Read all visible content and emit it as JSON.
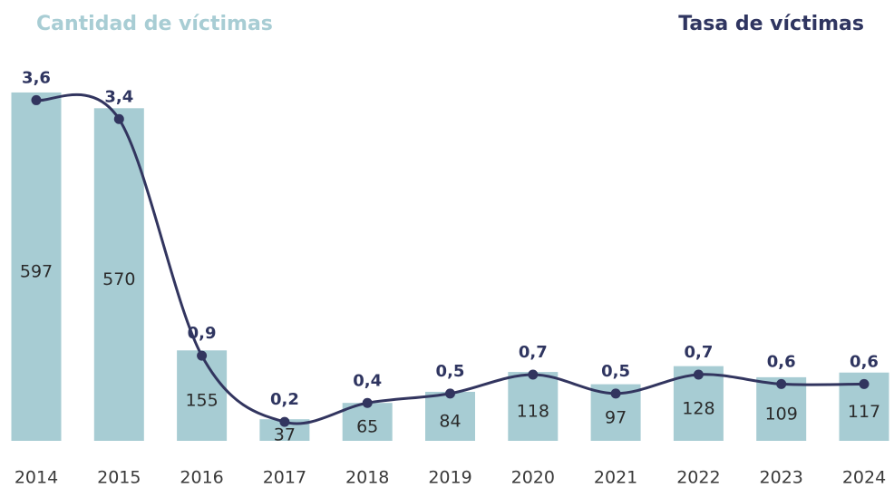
{
  "chart_data": {
    "type": "bar-line",
    "title_left": "Cantidad de víctimas",
    "title_right": "Tasa de víctimas",
    "categories": [
      "2014",
      "2015",
      "2016",
      "2017",
      "2018",
      "2019",
      "2020",
      "2021",
      "2022",
      "2023",
      "2024"
    ],
    "series": [
      {
        "name": "Cantidad de víctimas",
        "type": "bar",
        "color": "#a7ccd3",
        "values": [
          597,
          570,
          155,
          37,
          65,
          84,
          118,
          97,
          128,
          109,
          117
        ]
      },
      {
        "name": "Tasa de víctimas",
        "type": "line",
        "axis": "y2",
        "color": "#32355f",
        "values": [
          3.6,
          3.4,
          0.9,
          0.2,
          0.4,
          0.5,
          0.7,
          0.5,
          0.7,
          0.6,
          0.6
        ],
        "value_labels": [
          "3,6",
          "3,4",
          "0,9",
          "0,2",
          "0,4",
          "0,5",
          "0,7",
          "0,5",
          "0,7",
          "0,6",
          "0,6"
        ]
      }
    ],
    "ylim": [
      0,
      600
    ],
    "y2lim": [
      0,
      3.7
    ]
  }
}
